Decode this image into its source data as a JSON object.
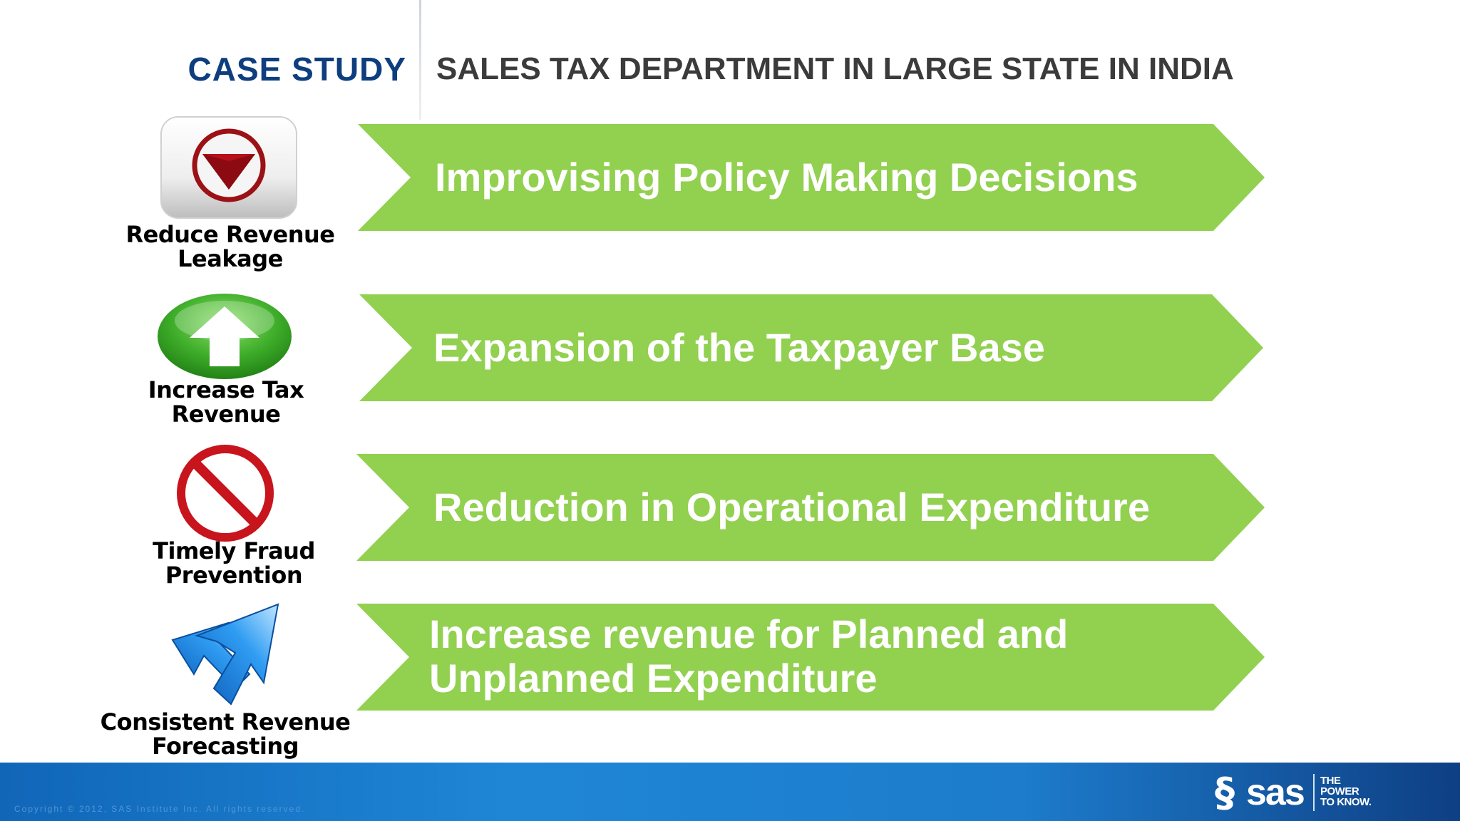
{
  "header": {
    "label": "CASE STUDY",
    "title": "SALES TAX DEPARTMENT IN LARGE STATE IN INDIA"
  },
  "rows": [
    {
      "icon": "down-arrow-button-icon",
      "label_line1": "Reduce Revenue",
      "label_line2": "Leakage",
      "arrow_line1": "Improvising Policy Making Decisions",
      "arrow_line2": ""
    },
    {
      "icon": "up-arrow-button-icon",
      "label_line1": "Increase Tax",
      "label_line2": "Revenue",
      "arrow_line1": "Expansion of the Taxpayer Base",
      "arrow_line2": ""
    },
    {
      "icon": "prohibition-sign-icon",
      "label_line1": "Timely Fraud",
      "label_line2": "Prevention",
      "arrow_line1": "Reduction in Operational Expenditure",
      "arrow_line2": ""
    },
    {
      "icon": "double-arrow-icon",
      "label_line1": "Consistent Revenue",
      "label_line2": "Forecasting",
      "arrow_line1": "Increase revenue for Planned and",
      "arrow_line2": "Unplanned Expenditure"
    }
  ],
  "colors": {
    "arrow_green": "#92d050",
    "header_blue": "#0e3e7e",
    "footer_blue": "#1d7ccc"
  },
  "footer": {
    "copyright": "Copyright © 2012, SAS Institute Inc. All rights reserved.",
    "logo_s": "§",
    "logo_text": "sas",
    "tagline_1": "THE",
    "tagline_2": "POWER",
    "tagline_3": "TO KNOW."
  }
}
